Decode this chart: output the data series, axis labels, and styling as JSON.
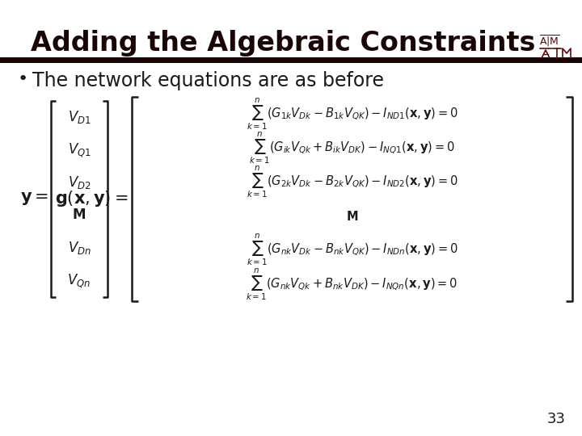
{
  "title": "Adding the Algebraic Constraints",
  "title_color": "#1a0505",
  "title_fontsize": 24,
  "bg_color": "#ffffff",
  "bar_color": "#1a0505",
  "bullet_text": "The network equations are as before",
  "bullet_fontsize": 17,
  "page_number": "33",
  "logo_color": "#5a0a0a",
  "math_color": "#1a1a1a",
  "eq1": "$\\sum_{k=1}^{n}\\left(G_{1k}V_{Dk}-B_{1k}V_{QK}\\right)-I_{ND1}(\\mathbf{x},\\mathbf{y})=0$",
  "eq2": "$\\sum_{k=1}^{n}\\left(G_{ik}V_{Qk}+B_{ik}V_{DK}\\right)-I_{NQ1}(\\mathbf{x},\\mathbf{y})=0$",
  "eq3": "$\\sum_{k=1}^{n}\\left(G_{2k}V_{Dk}-B_{2k}V_{QK}\\right)-I_{ND2}(\\mathbf{x},\\mathbf{y})=0$",
  "eq4": "$\\sum_{k=1}^{n}\\left(G_{nk}V_{Dk}-B_{nk}V_{QK}\\right)-I_{NDn}(\\mathbf{x},\\mathbf{y})=0$",
  "eq5": "$\\sum_{k=1}^{n}\\left(G_{nk}V_{Qk}+B_{nk}V_{DK}\\right)-I_{NQn}(\\mathbf{x},\\mathbf{y})=0$"
}
